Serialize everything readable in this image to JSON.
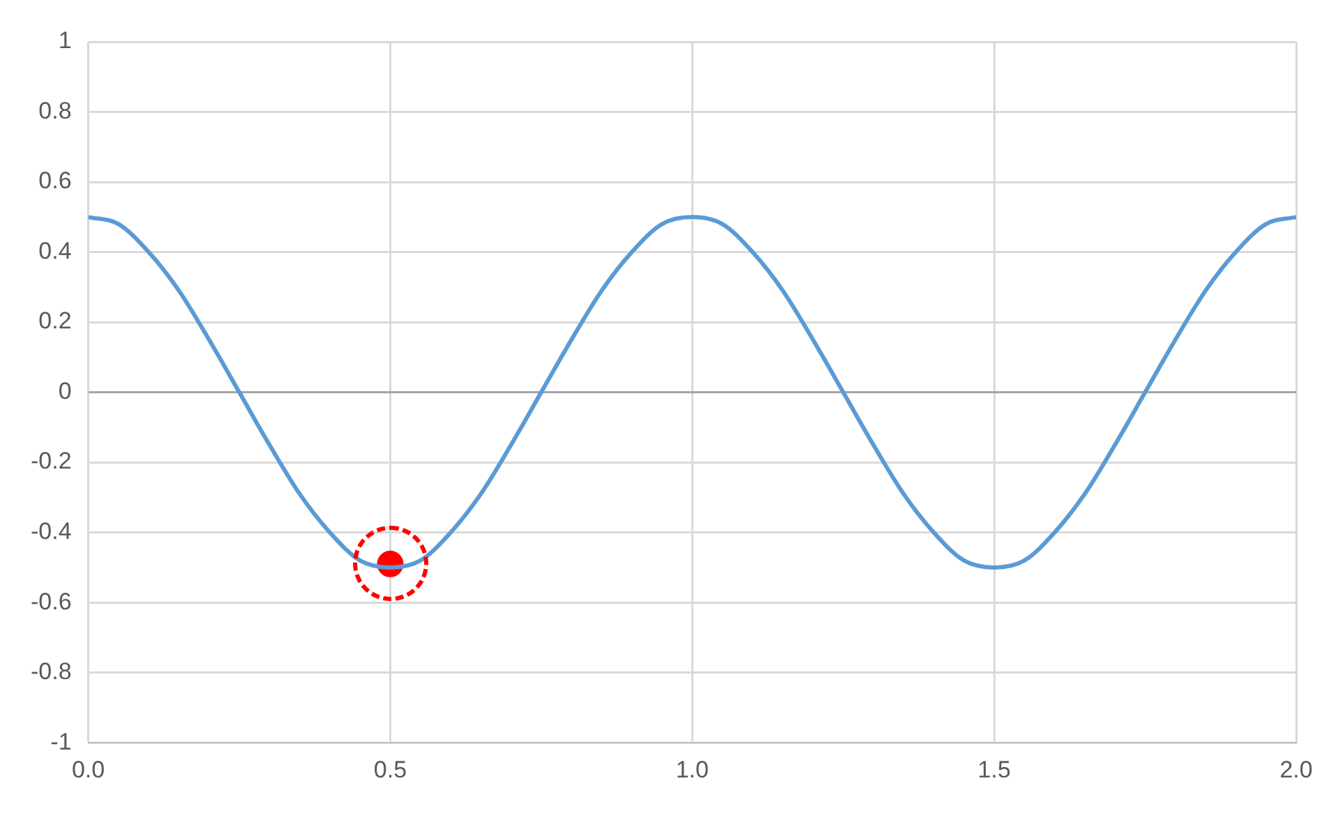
{
  "chart_data": {
    "type": "line",
    "xlim": [
      0,
      2
    ],
    "ylim": [
      -1,
      1
    ],
    "xticks": [
      {
        "value": 0,
        "label": "0.0"
      },
      0.5,
      {
        "value": 1,
        "label": "1.0"
      },
      1.5,
      {
        "value": 2,
        "label": "2.0"
      }
    ],
    "yticks": [
      -1,
      -0.8,
      -0.6,
      -0.4,
      -0.2,
      0,
      0.2,
      0.4,
      0.6,
      0.8,
      1
    ],
    "grid": true,
    "line_style": "solid",
    "series": [
      {
        "type": "line",
        "color": "#5b9bd5",
        "marker": "none",
        "x": [
          0,
          0.05,
          0.1,
          0.15,
          0.2,
          0.25,
          0.3,
          0.35,
          0.4,
          0.45,
          0.5,
          0.55,
          0.6,
          0.65,
          0.7,
          0.75,
          0.8,
          0.85,
          0.9,
          0.95,
          1,
          1.05,
          1.1,
          1.15,
          1.2,
          1.25,
          1.3,
          1.35,
          1.4,
          1.45,
          1.5,
          1.55,
          1.6,
          1.65,
          1.7,
          1.75,
          1.8,
          1.85,
          1.9,
          1.95,
          2
        ],
        "values": [
          0.5,
          0.48,
          0.4,
          0.29,
          0.15,
          0,
          -0.15,
          -0.29,
          -0.4,
          -0.48,
          -0.5,
          -0.48,
          -0.4,
          -0.29,
          -0.15,
          0,
          0.15,
          0.29,
          0.4,
          0.48,
          0.5,
          0.48,
          0.4,
          0.29,
          0.15,
          0,
          -0.15,
          -0.29,
          -0.4,
          -0.48,
          -0.5,
          -0.48,
          -0.4,
          -0.29,
          -0.15,
          0,
          0.15,
          0.29,
          0.4,
          0.48,
          0.5
        ]
      },
      {
        "type": "scatter",
        "color": "#ff0000",
        "marker": "circle",
        "x": [
          0.5
        ],
        "values": [
          -0.49
        ]
      }
    ]
  }
}
